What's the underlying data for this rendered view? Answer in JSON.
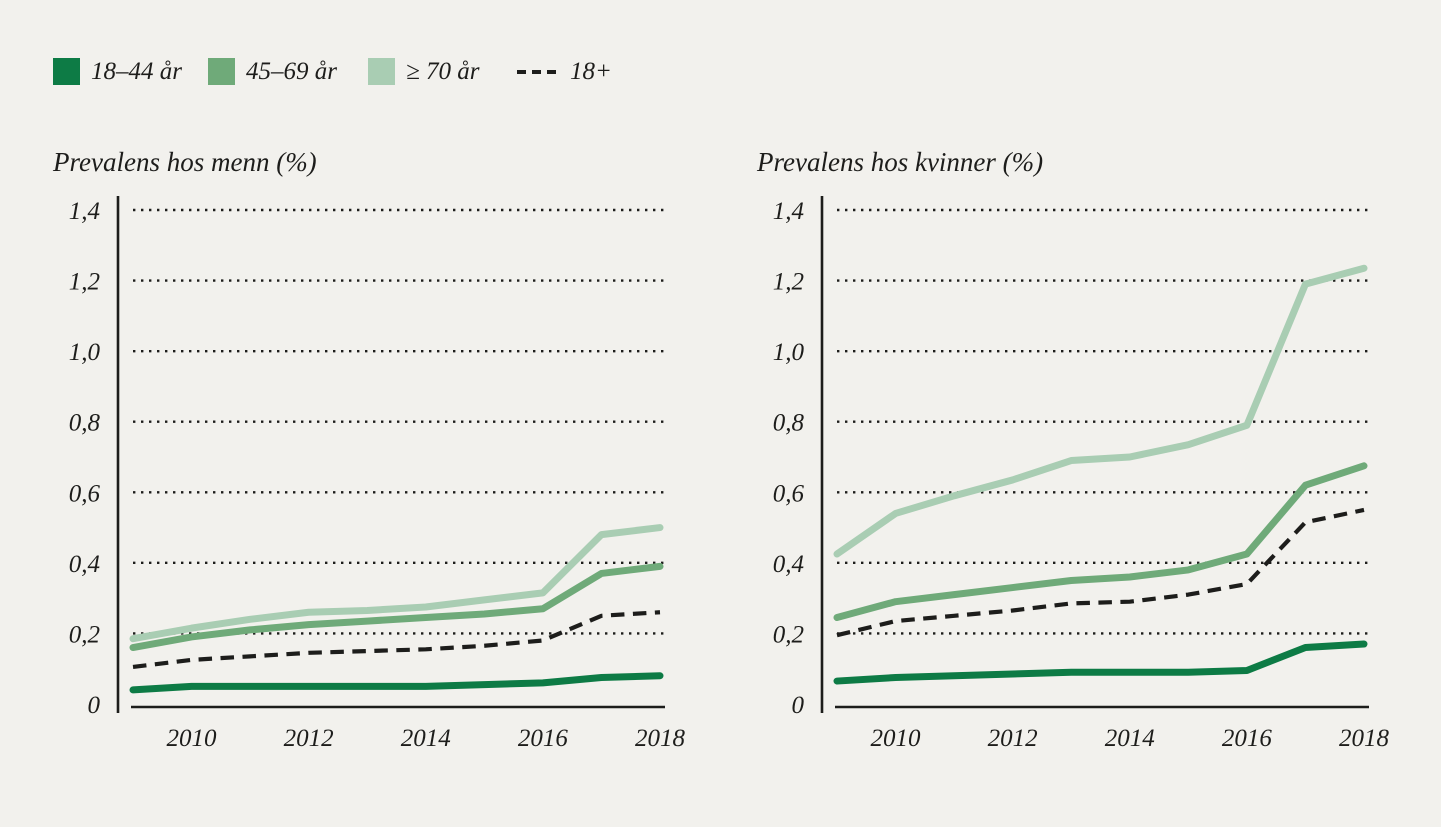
{
  "page": {
    "background_color": "#f2f1ed",
    "ink_color": "#1d1d1b"
  },
  "legend": {
    "items": [
      {
        "label": "18–44 år",
        "swatch": "square",
        "color": "#0d7b45"
      },
      {
        "label": "45–69 år",
        "swatch": "square",
        "color": "#6faa79"
      },
      {
        "label": "≥ 70 år",
        "swatch": "square",
        "color": "#a9cdb3"
      },
      {
        "label": "18+",
        "swatch": "dashed-line",
        "color": "#1d1d1b"
      }
    ]
  },
  "chart_data": [
    {
      "type": "line",
      "title": "Prevalens hos menn (%)",
      "x": [
        2009,
        2010,
        2011,
        2012,
        2013,
        2014,
        2015,
        2016,
        2017,
        2018
      ],
      "xticks": [
        2010,
        2012,
        2014,
        2016,
        2018
      ],
      "xtick_labels": [
        "2010",
        "2012",
        "2014",
        "2016",
        "2018"
      ],
      "ylim": [
        0,
        1.4
      ],
      "yticks": [
        0,
        0.2,
        0.4,
        0.6,
        0.8,
        1.0,
        1.2,
        1.4
      ],
      "ytick_labels": [
        "0",
        "0,2",
        "0,4",
        "0,6",
        "0,8",
        "1,0",
        "1,2",
        "1,4"
      ],
      "grid": "dotted-horizontal",
      "series": [
        {
          "name": "18–44 år",
          "style": "solid",
          "color": "#0d7b45",
          "values": [
            0.04,
            0.05,
            0.05,
            0.05,
            0.05,
            0.05,
            0.055,
            0.06,
            0.075,
            0.08
          ]
        },
        {
          "name": "45–69 år",
          "style": "solid",
          "color": "#6faa79",
          "values": [
            0.16,
            0.19,
            0.21,
            0.225,
            0.235,
            0.245,
            0.255,
            0.27,
            0.37,
            0.39
          ]
        },
        {
          "name": "≥ 70 år",
          "style": "solid",
          "color": "#a9cdb3",
          "values": [
            0.185,
            0.215,
            0.24,
            0.26,
            0.265,
            0.275,
            0.295,
            0.315,
            0.48,
            0.5
          ]
        },
        {
          "name": "18+",
          "style": "dashed",
          "color": "#1d1d1b",
          "values": [
            0.105,
            0.125,
            0.135,
            0.145,
            0.15,
            0.155,
            0.165,
            0.18,
            0.25,
            0.26
          ]
        }
      ]
    },
    {
      "type": "line",
      "title": "Prevalens hos kvinner (%)",
      "x": [
        2009,
        2010,
        2011,
        2012,
        2013,
        2014,
        2015,
        2016,
        2017,
        2018
      ],
      "xticks": [
        2010,
        2012,
        2014,
        2016,
        2018
      ],
      "xtick_labels": [
        "2010",
        "2012",
        "2014",
        "2016",
        "2018"
      ],
      "ylim": [
        0,
        1.4
      ],
      "yticks": [
        0,
        0.2,
        0.4,
        0.6,
        0.8,
        1.0,
        1.2,
        1.4
      ],
      "ytick_labels": [
        "0",
        "0,2",
        "0,4",
        "0,6",
        "0,8",
        "1,0",
        "1,2",
        "1,4"
      ],
      "grid": "dotted-horizontal",
      "series": [
        {
          "name": "18–44 år",
          "style": "solid",
          "color": "#0d7b45",
          "values": [
            0.065,
            0.075,
            0.08,
            0.085,
            0.09,
            0.09,
            0.09,
            0.095,
            0.16,
            0.17
          ]
        },
        {
          "name": "45–69 år",
          "style": "solid",
          "color": "#6faa79",
          "values": [
            0.245,
            0.29,
            0.31,
            0.33,
            0.35,
            0.36,
            0.38,
            0.425,
            0.62,
            0.675
          ]
        },
        {
          "name": "≥ 70 år",
          "style": "solid",
          "color": "#a9cdb3",
          "values": [
            0.425,
            0.54,
            0.59,
            0.635,
            0.69,
            0.7,
            0.735,
            0.79,
            1.19,
            1.235
          ]
        },
        {
          "name": "18+",
          "style": "dashed",
          "color": "#1d1d1b",
          "values": [
            0.195,
            0.235,
            0.25,
            0.265,
            0.285,
            0.29,
            0.31,
            0.34,
            0.515,
            0.55
          ]
        }
      ]
    }
  ]
}
